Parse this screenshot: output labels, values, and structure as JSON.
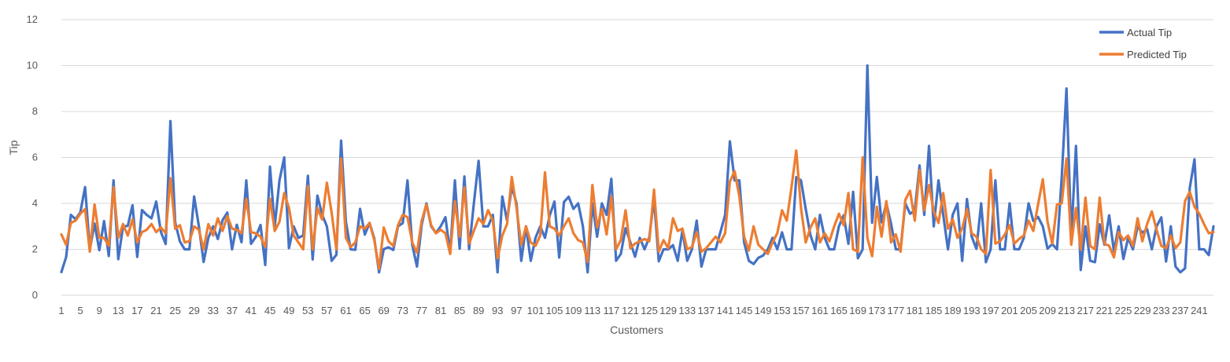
{
  "chart_data": {
    "type": "line",
    "xlabel": "Customers",
    "ylabel": "Tip",
    "ylim": [
      0,
      12
    ],
    "yticks": [
      0,
      2,
      4,
      6,
      8,
      10,
      12
    ],
    "grid": true,
    "legend_position": "top-right",
    "x_start": 1,
    "x_end": 244,
    "x_tick_step": 4,
    "series": [
      {
        "name": "Actual Tip",
        "color": "#4472C4",
        "values": [
          1.01,
          1.66,
          3.5,
          3.31,
          3.61,
          4.71,
          2.0,
          3.12,
          1.96,
          3.23,
          1.71,
          5.0,
          1.57,
          3.0,
          3.02,
          3.92,
          1.67,
          3.71,
          3.5,
          3.35,
          4.08,
          2.75,
          2.23,
          7.58,
          3.18,
          2.34,
          2.0,
          2.0,
          4.3,
          3.0,
          1.45,
          2.5,
          3.0,
          2.45,
          3.27,
          3.6,
          2.0,
          3.07,
          2.31,
          5.0,
          2.24,
          2.54,
          3.06,
          1.32,
          5.6,
          3.0,
          5.0,
          6.0,
          2.05,
          3.0,
          2.5,
          2.6,
          5.2,
          1.56,
          4.34,
          3.51,
          3.0,
          1.5,
          1.76,
          6.73,
          3.21,
          2.0,
          1.98,
          3.76,
          2.64,
          3.15,
          2.47,
          1.0,
          2.01,
          2.09,
          1.97,
          3.0,
          3.14,
          5.0,
          2.2,
          1.25,
          3.08,
          4.0,
          3.0,
          2.71,
          3.0,
          3.4,
          1.83,
          5.0,
          2.03,
          5.17,
          2.0,
          4.0,
          5.85,
          3.0,
          3.0,
          3.5,
          1.0,
          4.3,
          3.25,
          4.73,
          4.0,
          1.5,
          3.0,
          1.5,
          2.5,
          3.0,
          2.5,
          3.48,
          4.08,
          1.64,
          4.06,
          4.29,
          3.76,
          4.0,
          3.0,
          1.0,
          4.0,
          2.55,
          4.0,
          3.5,
          5.07,
          1.5,
          1.8,
          2.92,
          2.31,
          1.68,
          2.5,
          2.0,
          2.52,
          4.2,
          1.48,
          2.0,
          2.0,
          2.18,
          1.5,
          2.83,
          1.5,
          2.0,
          3.25,
          1.25,
          2.0,
          2.0,
          2.0,
          2.75,
          3.5,
          6.7,
          5.0,
          5.0,
          2.3,
          1.5,
          1.36,
          1.63,
          1.73,
          2.0,
          2.5,
          2.0,
          2.74,
          2.0,
          2.0,
          5.14,
          5.0,
          3.75,
          2.61,
          2.0,
          3.5,
          2.5,
          2.0,
          2.0,
          3.0,
          3.48,
          2.24,
          4.5,
          1.61,
          2.0,
          10.0,
          3.16,
          5.15,
          3.18,
          4.0,
          3.11,
          2.0,
          2.0,
          4.0,
          3.55,
          3.68,
          5.65,
          3.5,
          6.5,
          3.0,
          5.0,
          3.5,
          2.0,
          3.5,
          4.0,
          1.5,
          4.19,
          2.56,
          2.02,
          4.0,
          1.44,
          2.0,
          5.0,
          2.0,
          2.0,
          4.0,
          2.01,
          2.0,
          2.5,
          4.0,
          3.23,
          3.41,
          3.0,
          2.03,
          2.23,
          2.0,
          5.16,
          9.0,
          2.5,
          6.5,
          1.1,
          3.0,
          1.5,
          1.44,
          3.09,
          2.2,
          3.48,
          1.92,
          3.0,
          1.58,
          2.5,
          2.0,
          3.0,
          2.72,
          2.88,
          2.0,
          3.0,
          3.39,
          1.47,
          3.0,
          1.25,
          1.0,
          1.17,
          4.67,
          5.92,
          2.0,
          2.0,
          1.75,
          3.0
        ],
        "values_count": 244
      },
      {
        "name": "Predicted Tip",
        "color": "#ED7D31",
        "values": [
          2.65,
          2.2,
          3.15,
          3.25,
          3.55,
          3.75,
          1.9,
          3.95,
          2.5,
          2.5,
          2.15,
          4.7,
          2.5,
          3.1,
          2.6,
          3.3,
          2.3,
          2.75,
          2.85,
          3.1,
          2.75,
          2.95,
          2.7,
          5.1,
          2.9,
          3.05,
          2.3,
          2.35,
          3.0,
          2.85,
          2.0,
          3.1,
          2.6,
          3.35,
          2.8,
          3.45,
          2.9,
          2.85,
          2.7,
          4.2,
          2.75,
          2.7,
          2.55,
          2.1,
          4.2,
          2.8,
          3.2,
          4.45,
          3.8,
          2.6,
          2.3,
          2.0,
          4.75,
          2.0,
          3.8,
          3.3,
          4.9,
          3.6,
          2.0,
          5.95,
          2.5,
          2.1,
          2.3,
          3.0,
          2.9,
          3.15,
          2.4,
          1.15,
          2.95,
          2.35,
          2.15,
          3.05,
          3.5,
          3.4,
          2.3,
          1.85,
          3.25,
          3.95,
          3.05,
          2.7,
          2.85,
          2.7,
          1.8,
          4.1,
          2.55,
          4.7,
          2.25,
          2.8,
          3.35,
          3.1,
          3.7,
          3.25,
          1.6,
          2.6,
          3.1,
          5.15,
          3.8,
          2.2,
          3.0,
          2.3,
          2.15,
          2.6,
          5.35,
          3.0,
          2.9,
          2.6,
          3.0,
          3.35,
          2.7,
          2.4,
          2.3,
          1.45,
          4.8,
          2.95,
          3.75,
          2.65,
          4.3,
          2.0,
          2.4,
          3.7,
          2.05,
          2.25,
          2.35,
          2.45,
          2.35,
          4.6,
          1.9,
          2.4,
          2.05,
          3.35,
          2.8,
          2.9,
          2.0,
          2.1,
          2.75,
          1.9,
          2.05,
          2.3,
          2.55,
          2.3,
          2.7,
          4.95,
          5.4,
          4.3,
          2.55,
          1.95,
          3.0,
          2.2,
          2.0,
          1.8,
          2.3,
          2.7,
          3.7,
          3.25,
          4.7,
          6.3,
          3.8,
          2.3,
          2.95,
          3.35,
          2.3,
          2.7,
          2.35,
          3.0,
          3.55,
          3.05,
          4.45,
          2.0,
          1.9,
          6.0,
          2.5,
          1.7,
          3.85,
          2.55,
          4.1,
          2.3,
          2.65,
          1.9,
          4.15,
          4.55,
          3.25,
          5.45,
          3.7,
          4.8,
          3.65,
          3.15,
          4.45,
          2.9,
          3.3,
          2.5,
          2.9,
          3.75,
          2.7,
          2.55,
          2.0,
          1.8,
          5.45,
          2.25,
          2.35,
          2.65,
          3.05,
          2.25,
          2.45,
          2.6,
          3.25,
          2.8,
          3.95,
          5.05,
          3.2,
          2.25,
          3.95,
          4.0,
          5.95,
          2.2,
          3.8,
          2.0,
          4.25,
          2.15,
          2.0,
          4.25,
          2.25,
          2.15,
          1.65,
          2.75,
          2.4,
          2.6,
          2.15,
          3.35,
          2.35,
          3.1,
          3.65,
          2.85,
          2.15,
          2.05,
          2.6,
          2.05,
          2.3,
          4.1,
          4.5,
          3.85,
          3.55,
          3.1,
          2.7,
          2.75
        ]
      }
    ]
  }
}
